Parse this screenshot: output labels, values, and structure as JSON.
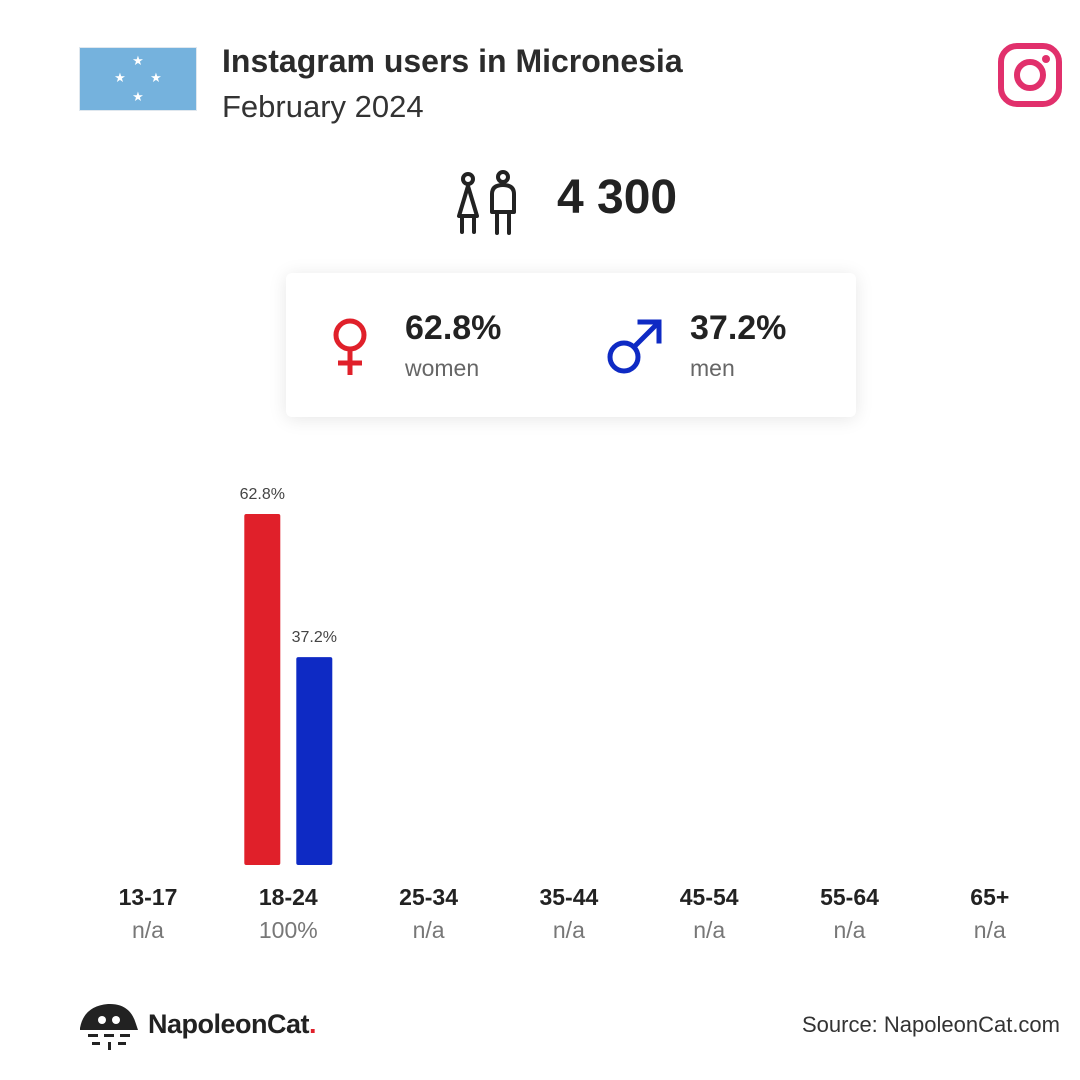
{
  "header": {
    "title": "Instagram users in Micronesia",
    "subtitle": "February 2024"
  },
  "flag": {
    "background": "#75b2dd",
    "stars": "#ffffff"
  },
  "platform": {
    "icon": "instagram-icon",
    "color": "#e1306c"
  },
  "total": {
    "icon": "users-icon",
    "value": "4 300"
  },
  "gender": {
    "women": {
      "icon": "female-icon",
      "value": "62.8%",
      "label": "women",
      "color": "#e0202a"
    },
    "men": {
      "icon": "male-icon",
      "value": "37.2%",
      "label": "men",
      "color": "#0e2ac4"
    }
  },
  "chart_data": {
    "type": "bar",
    "categories": [
      "13-17",
      "18-24",
      "25-34",
      "35-44",
      "45-54",
      "55-64",
      "65+"
    ],
    "category_shares": [
      "n/a",
      "100%",
      "n/a",
      "n/a",
      "n/a",
      "n/a",
      "n/a"
    ],
    "series": [
      {
        "values": [
          null,
          62.8,
          null,
          null,
          null,
          null,
          null
        ],
        "labels": [
          "",
          "62.8%",
          "",
          "",
          "",
          "",
          ""
        ],
        "color": "#e0202a"
      },
      {
        "values": [
          null,
          37.2,
          null,
          null,
          null,
          null,
          null
        ],
        "labels": [
          "",
          "37.2%",
          "",
          "",
          "",
          "",
          ""
        ],
        "color": "#0e2ac4"
      }
    ],
    "ylim": [
      0,
      62.8
    ],
    "grid": false,
    "title": "",
    "xlabel": "",
    "ylabel": ""
  },
  "footer": {
    "brand": "NapoleonCat",
    "brand_dot": ".",
    "logo_icon": "napoleoncat-logo-icon",
    "source": "Source: NapoleonCat.com"
  }
}
